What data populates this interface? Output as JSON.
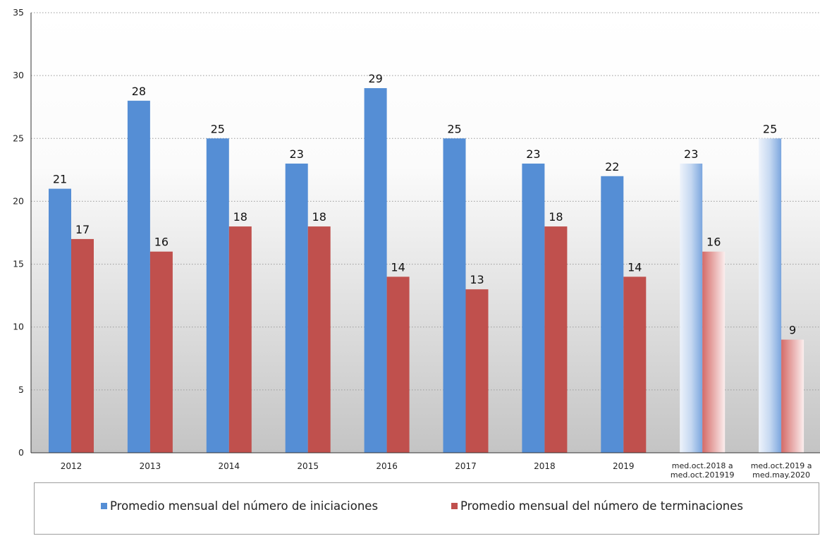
{
  "chart_data": {
    "type": "bar",
    "title": "",
    "xlabel": "",
    "ylabel": "",
    "ylim": [
      0,
      35
    ],
    "yticks": [
      0,
      5,
      10,
      15,
      20,
      25,
      30,
      35
    ],
    "grid": true,
    "legend_position": "bottom",
    "categories": [
      [
        "2012"
      ],
      [
        "2013"
      ],
      [
        "2014"
      ],
      [
        "2015"
      ],
      [
        "2016"
      ],
      [
        "2017"
      ],
      [
        "2018"
      ],
      [
        "2019"
      ],
      [
        "med.oct.2018 a",
        "med.oct.201919"
      ],
      [
        "med.oct.2019 a",
        "med.may.2020"
      ]
    ],
    "series": [
      {
        "name": "Promedio mensual del número de iniciaciones",
        "color": "#558ed5",
        "values": [
          21,
          28,
          25,
          23,
          29,
          25,
          23,
          22,
          23,
          25
        ]
      },
      {
        "name": "Promedio mensual del número de terminaciones",
        "color": "#c0504d",
        "values": [
          17,
          16,
          18,
          18,
          14,
          13,
          18,
          14,
          16,
          9
        ]
      }
    ],
    "gradient_categories": [
      8,
      9
    ]
  }
}
